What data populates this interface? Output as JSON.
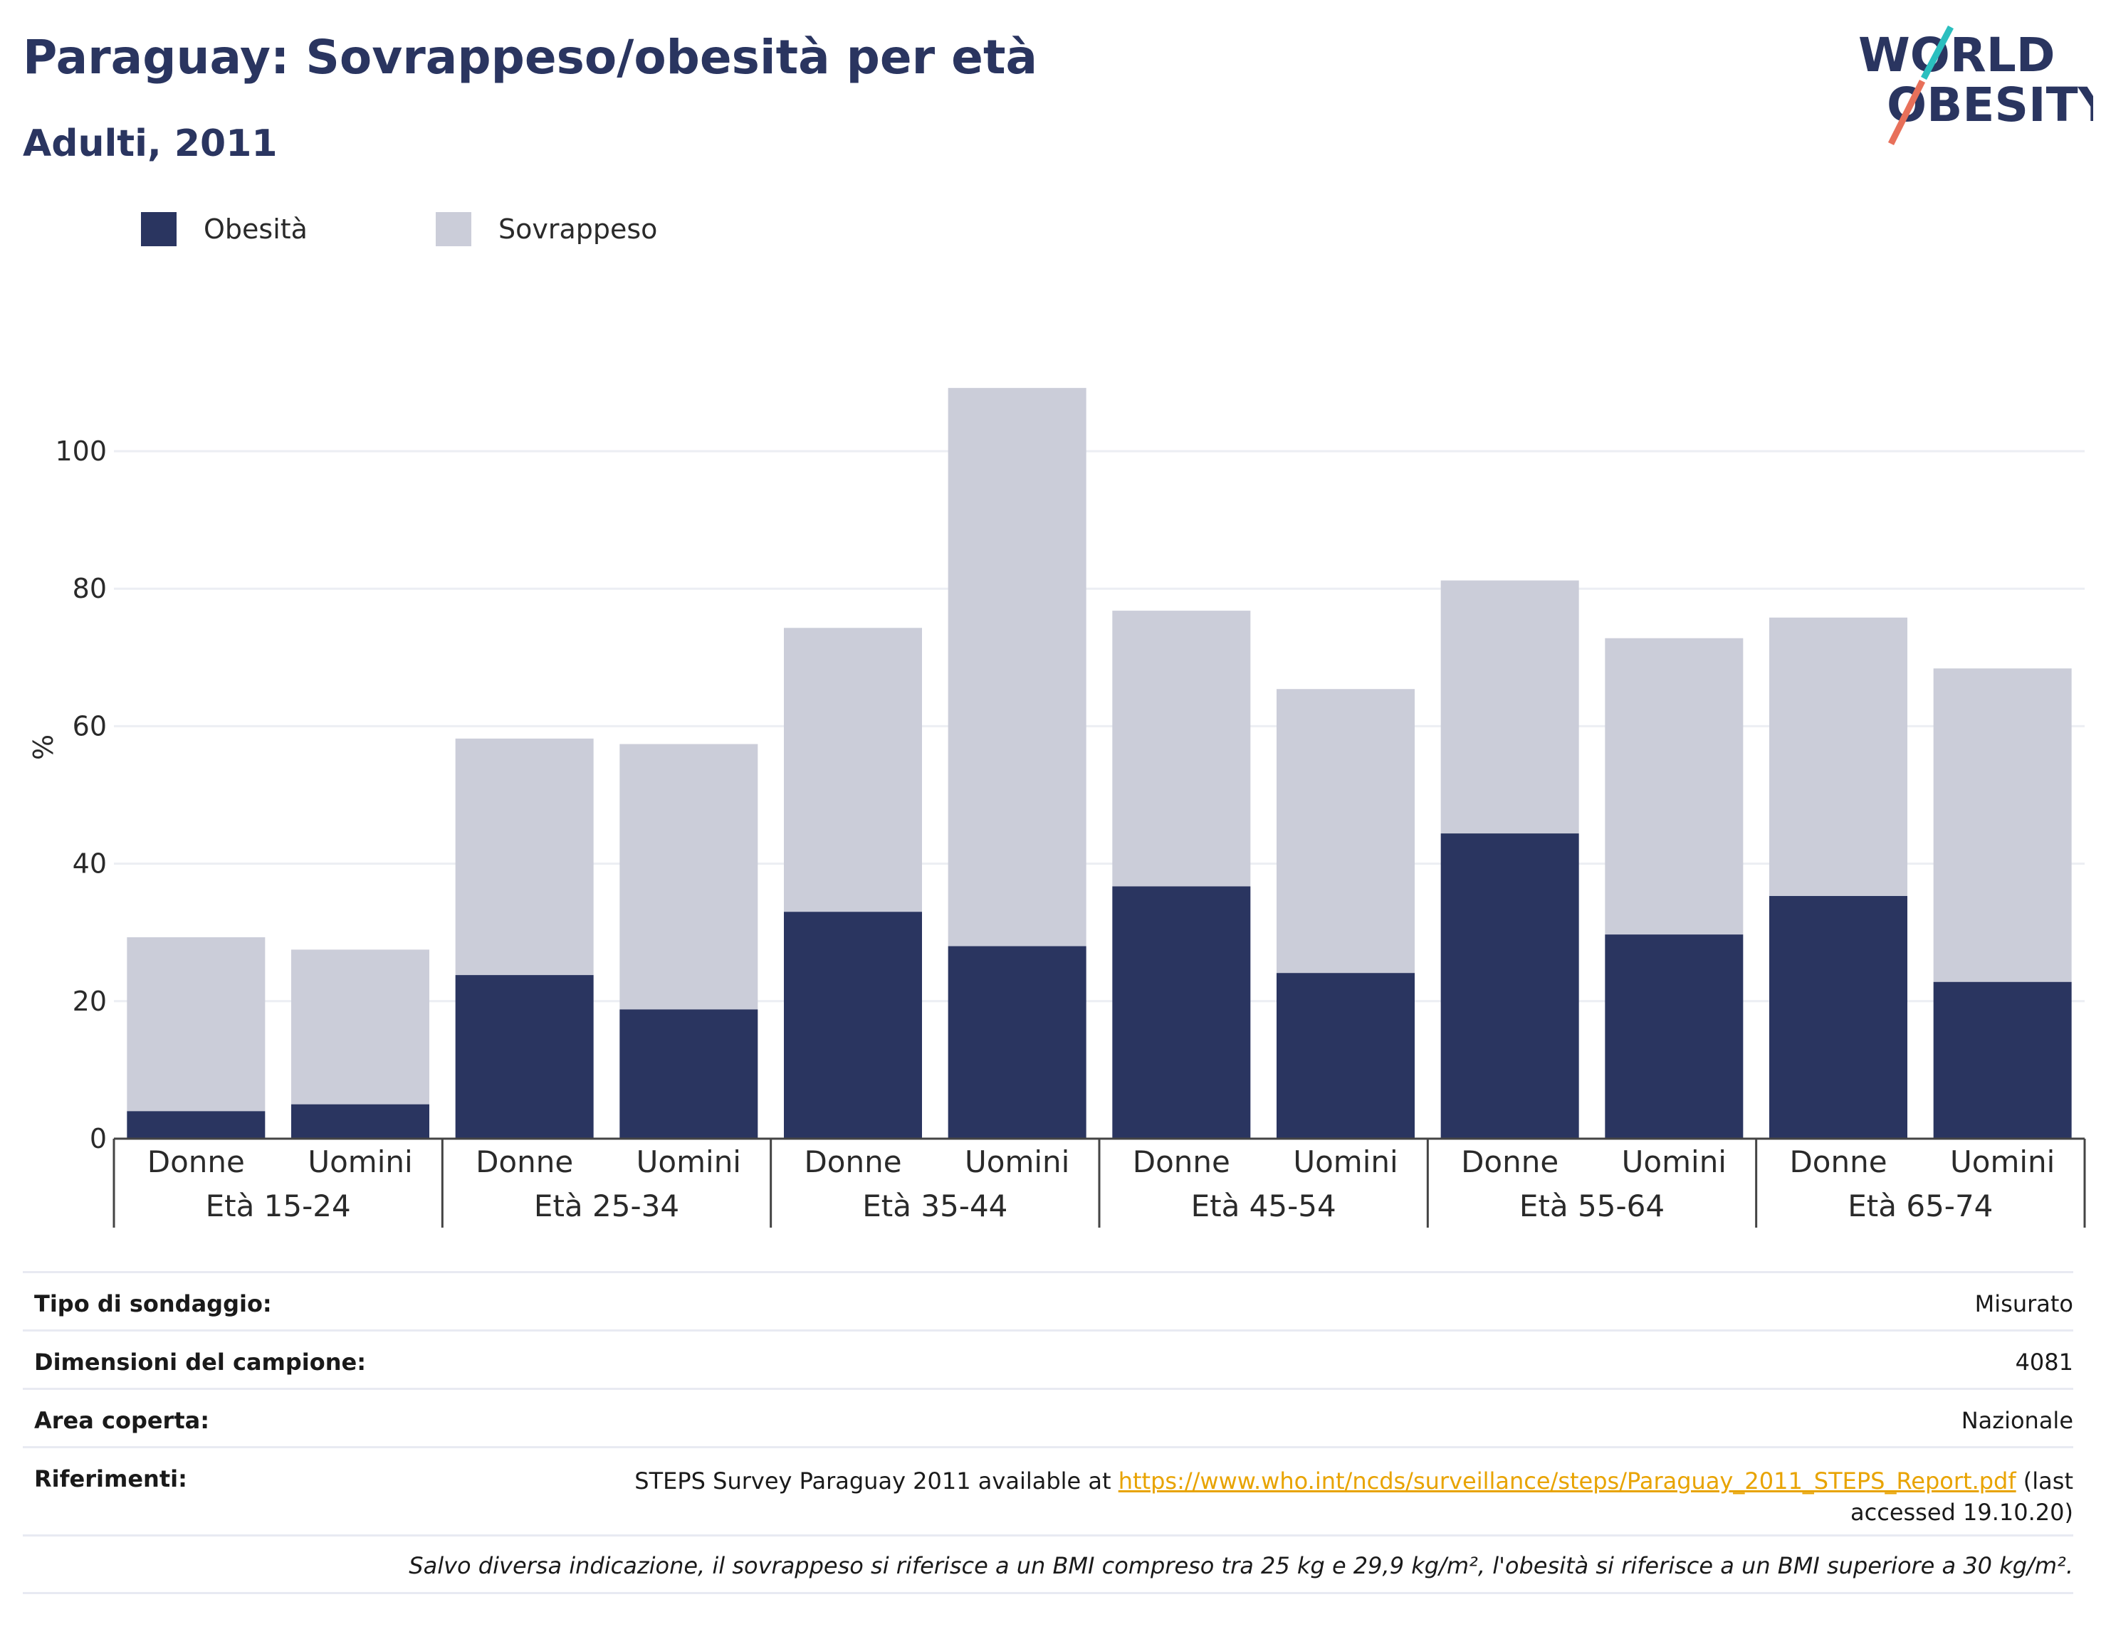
{
  "header": {
    "title": "Paraguay: Sovrappeso/obesità per età",
    "subtitle": "Adulti, 2011"
  },
  "logo": {
    "line1": "WORLD",
    "line2": "OBESITY",
    "colors": {
      "text": "#2a3560",
      "teal": "#2bbfbf",
      "coral": "#e8705a"
    }
  },
  "legend": {
    "items": [
      {
        "label": "Obesità",
        "color": "#2a3560"
      },
      {
        "label": "Sovrappeso",
        "color": "#cbcdd9"
      }
    ]
  },
  "chart_data": {
    "type": "bar",
    "stacked": true,
    "ylabel": "%",
    "ylim": [
      0,
      115
    ],
    "yticks": [
      0,
      20,
      40,
      60,
      80,
      100
    ],
    "grid": true,
    "legend_position": "top-left",
    "groups": [
      "Età 15-24",
      "Età 25-34",
      "Età 35-44",
      "Età 45-54",
      "Età 55-64",
      "Età 65-74"
    ],
    "subcategories": [
      "Donne",
      "Uomini"
    ],
    "series": [
      {
        "name": "Obesità",
        "color": "#2a3560",
        "values": [
          4,
          5,
          23.8,
          18.8,
          33,
          28,
          36.7,
          24.1,
          44.4,
          29.7,
          35.3,
          22.8
        ]
      },
      {
        "name": "Sovrappeso",
        "color": "#cbcdd9",
        "values": [
          25.3,
          22.5,
          34.4,
          38.6,
          41.3,
          81.2,
          40.1,
          41.3,
          36.8,
          43.1,
          40.5,
          45.6
        ]
      }
    ]
  },
  "info": {
    "rows": [
      {
        "label": "Tipo di sondaggio:",
        "value": "Misurato"
      },
      {
        "label": "Dimensioni del campione:",
        "value": "4081"
      },
      {
        "label": "Area coperta:",
        "value": "Nazionale"
      }
    ],
    "references": {
      "label": "Riferimenti:",
      "prefix": "STEPS Survey Paraguay 2011 available at ",
      "link": "https://www.who.int/ncds/surveillance/steps/Paraguay_2011_STEPS_Report.pdf",
      "suffix_line1": " (last",
      "suffix_line2": "accessed 19.10.20)"
    },
    "note": "Salvo diversa indicazione, il sovrappeso si riferisce a un BMI compreso tra 25 kg e 29,9 kg/m², l'obesità si riferisce a un BMI superiore a 30 kg/m²."
  }
}
